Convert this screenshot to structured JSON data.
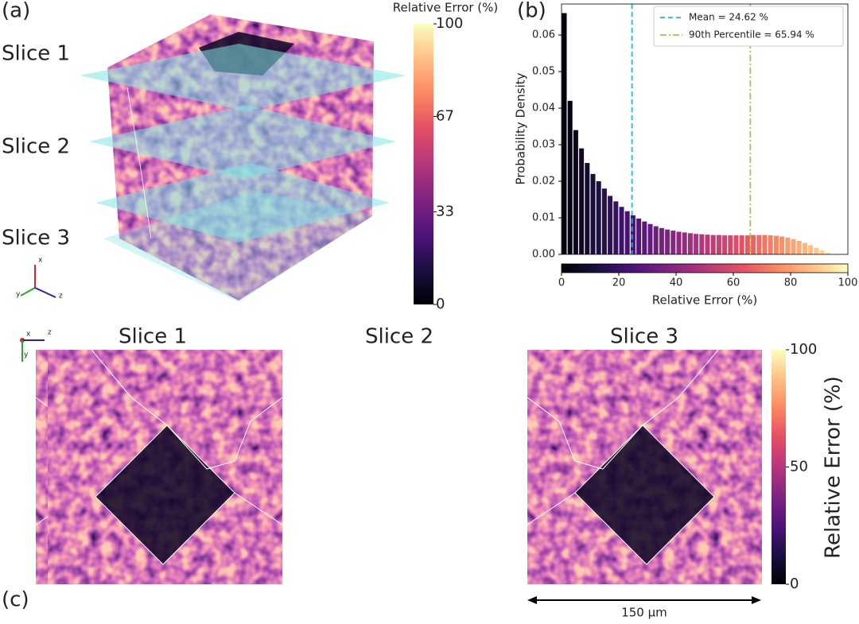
{
  "panel_a": {
    "label": "(a)",
    "slices": [
      "Slice 1",
      "Slice 2",
      "Slice 3"
    ],
    "axes": [
      "x",
      "y",
      "z"
    ],
    "colorbar": {
      "title": "Relative Error (%)",
      "lim": [
        0,
        100
      ],
      "ticks": [
        100,
        67,
        33,
        0
      ]
    }
  },
  "chart_data": {
    "type": "histogram",
    "label": "(b)",
    "xlabel": "Relative Error (%)",
    "ylabel": "Probability Density",
    "bins": [
      0,
      2,
      4,
      6,
      8,
      10,
      12,
      14,
      16,
      18,
      20,
      22,
      24,
      26,
      28,
      30,
      32,
      34,
      36,
      38,
      40,
      42,
      44,
      46,
      48,
      50,
      52,
      54,
      56,
      58,
      60,
      62,
      64,
      66,
      68,
      70,
      72,
      74,
      76,
      78,
      80,
      82,
      84,
      86,
      88,
      90,
      92,
      94
    ],
    "values": [
      0.066,
      0.042,
      0.034,
      0.029,
      0.025,
      0.022,
      0.02,
      0.018,
      0.016,
      0.0145,
      0.013,
      0.0118,
      0.0107,
      0.0098,
      0.009,
      0.0083,
      0.0077,
      0.0072,
      0.0068,
      0.0065,
      0.0062,
      0.006,
      0.0058,
      0.0056,
      0.0055,
      0.0054,
      0.0053,
      0.0053,
      0.0052,
      0.0052,
      0.0052,
      0.0052,
      0.0052,
      0.0053,
      0.0053,
      0.0053,
      0.0052,
      0.0051,
      0.0049,
      0.0046,
      0.0042,
      0.0037,
      0.0031,
      0.0025,
      0.0018,
      0.0011,
      0.0005
    ],
    "colormap": "magma",
    "xlim": [
      0,
      100
    ],
    "xticks": [
      0,
      20,
      40,
      60,
      80,
      100
    ],
    "ylim": [
      0,
      0.0685
    ],
    "yticks": [
      {
        "value": 0,
        "label": "0.00"
      },
      0.01,
      0.02,
      0.03,
      0.04,
      0.05,
      0.06
    ],
    "lines": [
      {
        "name": "Mean = 24.62 %",
        "value": 24.62,
        "color": "#17becf",
        "style": "dashed"
      },
      {
        "name": "90th Percentile = 65.94 %",
        "value": 65.94,
        "color": "#9acd32",
        "style": "dashdot"
      }
    ],
    "legend": "upper right"
  },
  "panel_c": {
    "label": "(c)",
    "axes": [
      "x",
      "z",
      "y"
    ],
    "titles": [
      "Slice 1",
      "Slice 2",
      "Slice 3"
    ],
    "colorbar": {
      "title": "Relative Error (%)",
      "lim": [
        0,
        100
      ],
      "ticks": [
        100,
        50,
        0
      ]
    },
    "scale_bar": "150 μm"
  }
}
